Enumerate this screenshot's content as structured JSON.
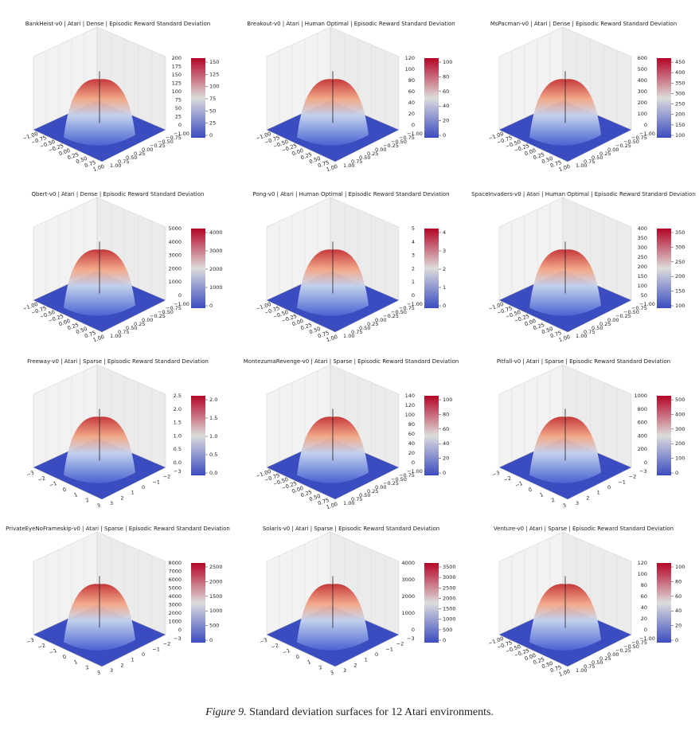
{
  "panels": [
    {
      "title": "BankHeist-v0 | Atari | Dense | Episodic Reward Standard Deviation",
      "xticks": [
        "−1.00",
        "−0.75",
        "−0.50",
        "−0.25",
        "0.00",
        "0.25",
        "0.50",
        "0.75",
        "1.00"
      ],
      "yticks": [
        "1.00",
        "0.75",
        "0.50",
        "0.25",
        "0.00",
        "−0.25",
        "−0.50",
        "−0.75",
        "−1.00"
      ],
      "zticks": [
        "0",
        "25",
        "50",
        "75",
        "100",
        "125",
        "150",
        "175",
        "200"
      ],
      "cbar_ticks": [
        "0",
        "25",
        "50",
        "75",
        "100",
        "125",
        "150"
      ]
    },
    {
      "title": "Breakout-v0 | Atari | Human Optimal | Episodic Reward Standard Deviation",
      "xticks": [
        "−1.00",
        "−0.75",
        "−0.50",
        "−0.25",
        "0.00",
        "0.25",
        "0.50",
        "0.75",
        "1.00"
      ],
      "yticks": [
        "1.00",
        "0.75",
        "0.50",
        "0.25",
        "0.00",
        "−0.25",
        "−0.50",
        "−0.75",
        "−1.00"
      ],
      "zticks": [
        "0",
        "20",
        "40",
        "60",
        "80",
        "100",
        "120"
      ],
      "cbar_ticks": [
        "0",
        "20",
        "40",
        "60",
        "80",
        "100"
      ]
    },
    {
      "title": "MsPacman-v0 | Atari | Dense | Episodic Reward Standard Deviation",
      "xticks": [
        "−1.00",
        "−0.75",
        "−0.50",
        "−0.25",
        "0.00",
        "0.25",
        "0.50",
        "0.75",
        "1.00"
      ],
      "yticks": [
        "1.00",
        "0.75",
        "0.50",
        "0.25",
        "0.00",
        "−0.25",
        "−0.50",
        "−0.75",
        "−1.00"
      ],
      "zticks": [
        "0",
        "100",
        "200",
        "300",
        "400",
        "500",
        "600"
      ],
      "cbar_ticks": [
        "100",
        "150",
        "200",
        "250",
        "300",
        "350",
        "400",
        "450"
      ]
    },
    {
      "title": "Qbert-v0 | Atari | Dense | Episodic Reward Standard Deviation",
      "xticks": [
        "−1.00",
        "−0.75",
        "−0.50",
        "−0.25",
        "0.00",
        "0.25",
        "0.50",
        "0.75",
        "1.00"
      ],
      "yticks": [
        "1.00",
        "0.75",
        "0.50",
        "0.25",
        "0.00",
        "−0.25",
        "−0.50",
        "−0.75",
        "−1.00"
      ],
      "zticks": [
        "0",
        "1000",
        "2000",
        "3000",
        "4000",
        "5000"
      ],
      "cbar_ticks": [
        "0",
        "1000",
        "2000",
        "3000",
        "4000"
      ]
    },
    {
      "title": "Pong-v0 | Atari | Human Optimal | Episodic Reward Standard Deviation",
      "xticks": [
        "−1.00",
        "−0.75",
        "−0.50",
        "−0.25",
        "0.00",
        "0.25",
        "0.50",
        "0.75",
        "1.00"
      ],
      "yticks": [
        "1.00",
        "0.75",
        "0.50",
        "0.25",
        "0.00",
        "−0.25",
        "−0.50",
        "−0.75",
        "−1.00"
      ],
      "zticks": [
        "0",
        "1",
        "2",
        "3",
        "4",
        "5"
      ],
      "cbar_ticks": [
        "0",
        "1",
        "2",
        "3",
        "4"
      ]
    },
    {
      "title": "SpaceInvaders-v0 | Atari | Human Optimal | Episodic Reward Standard Deviation",
      "xticks": [
        "−1.00",
        "−0.75",
        "−0.50",
        "−0.25",
        "0.00",
        "0.25",
        "0.50",
        "0.75",
        "1.00"
      ],
      "yticks": [
        "1.00",
        "0.75",
        "0.50",
        "0.25",
        "0.00",
        "−0.25",
        "−0.50",
        "−0.75",
        "−1.00"
      ],
      "zticks": [
        "50",
        "100",
        "150",
        "200",
        "250",
        "300",
        "350",
        "400"
      ],
      "cbar_ticks": [
        "100",
        "150",
        "200",
        "250",
        "300",
        "350"
      ]
    },
    {
      "title": "Freeway-v0 | Atari | Sparse | Episodic Reward Standard Deviation",
      "xticks": [
        "−3",
        "−2",
        "−1",
        "0",
        "1",
        "2",
        "3"
      ],
      "yticks": [
        "3",
        "2",
        "1",
        "0",
        "−1",
        "−2",
        "−3"
      ],
      "zticks": [
        "0.0",
        "0.5",
        "1.0",
        "1.5",
        "2.0",
        "2.5"
      ],
      "cbar_ticks": [
        "0.0",
        "0.5",
        "1.0",
        "1.5",
        "2.0"
      ]
    },
    {
      "title": "MontezumaRevenge-v0 | Atari | Sparse | Episodic Reward Standard Deviation",
      "xticks": [
        "−1.00",
        "−0.75",
        "−0.50",
        "−0.25",
        "0.00",
        "0.25",
        "0.50",
        "0.75",
        "1.00"
      ],
      "yticks": [
        "1.00",
        "0.75",
        "0.50",
        "0.25",
        "0.00",
        "−0.25",
        "−0.50",
        "−0.75",
        "−1.00"
      ],
      "zticks": [
        "0",
        "20",
        "40",
        "60",
        "80",
        "100",
        "120",
        "140"
      ],
      "cbar_ticks": [
        "0",
        "20",
        "40",
        "60",
        "80",
        "100"
      ]
    },
    {
      "title": "Pitfall-v0 | Atari | Sparse | Episodic Reward Standard Deviation",
      "xticks": [
        "−3",
        "−2",
        "−1",
        "0",
        "1",
        "2",
        "3"
      ],
      "yticks": [
        "3",
        "2",
        "1",
        "0",
        "−1",
        "−2",
        "−3"
      ],
      "zticks": [
        "0",
        "200",
        "400",
        "600",
        "800",
        "1000"
      ],
      "cbar_ticks": [
        "0",
        "100",
        "200",
        "300",
        "400",
        "500"
      ]
    },
    {
      "title": "PrivateEyeNoFrameskip-v0 | Atari | Sparse | Episodic Reward Standard Deviation",
      "xticks": [
        "−3",
        "−2",
        "−1",
        "0",
        "1",
        "2",
        "3"
      ],
      "yticks": [
        "3",
        "2",
        "1",
        "0",
        "−1",
        "−2",
        "−3"
      ],
      "zticks": [
        "0",
        "1000",
        "2000",
        "3000",
        "4000",
        "5000",
        "6000",
        "7000",
        "8000"
      ],
      "cbar_ticks": [
        "0",
        "500",
        "1000",
        "1500",
        "2000",
        "2500"
      ]
    },
    {
      "title": "Solaris-v0 | Atari | Sparse | Episodic Reward Standard Deviation",
      "xticks": [
        "−3",
        "−2",
        "−1",
        "0",
        "1",
        "2",
        "3"
      ],
      "yticks": [
        "3",
        "2",
        "1",
        "0",
        "−1",
        "−2",
        "−3"
      ],
      "zticks": [
        "0",
        "1000",
        "2000",
        "3000",
        "4000"
      ],
      "cbar_ticks": [
        "0",
        "500",
        "1000",
        "1500",
        "2000",
        "2500",
        "3000",
        "3500"
      ]
    },
    {
      "title": "Venture-v0 | Atari | Sparse | Episodic Reward Standard Deviation",
      "xticks": [
        "−1.00",
        "−0.75",
        "−0.50",
        "−0.25",
        "0.00",
        "0.25",
        "0.50",
        "0.75",
        "1.00"
      ],
      "yticks": [
        "1.00",
        "0.75",
        "0.50",
        "0.25",
        "0.00",
        "−0.25",
        "−0.50",
        "−0.75",
        "−1.00"
      ],
      "zticks": [
        "0",
        "20",
        "40",
        "60",
        "80",
        "100",
        "120"
      ],
      "cbar_ticks": [
        "0",
        "20",
        "40",
        "60",
        "80",
        "100"
      ]
    }
  ],
  "caption": {
    "label": "Figure 9.",
    "text": "Standard deviation surfaces for 12 Atari environments."
  }
}
